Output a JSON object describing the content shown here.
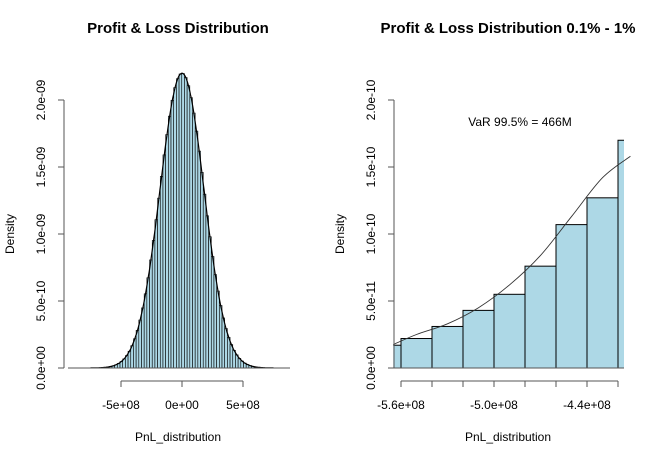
{
  "chart_data": [
    {
      "type": "bar",
      "subtype": "histogram",
      "title": "Profit & Loss Distribution",
      "xlabel": "PnL_distribution",
      "ylabel": "Density",
      "xlim": [
        -1000000000.0,
        1000000000.0
      ],
      "ylim": [
        0,
        2.2e-09
      ],
      "x_ticks": [
        -500000000.0,
        0,
        500000000.0
      ],
      "x_tick_labels": [
        "-5e+08",
        "0e+00",
        "5e+08"
      ],
      "y_ticks": [
        0,
        5e-10,
        1e-09,
        1.5e-09,
        2e-09
      ],
      "y_tick_labels": [
        "0.0e+00",
        "5.0e-10",
        "1.0e-09",
        "1.5e-09",
        "2.0e-09"
      ],
      "distribution": {
        "shape": "normal",
        "mean": 0,
        "sd": 180000000.0,
        "peak_density": 2.2e-09,
        "support": [
          -750000000.0,
          750000000.0
        ],
        "bin_width": 10000000.0
      },
      "fill_color": "#add8e6",
      "border_color": "#000000",
      "overlay_curve": "normal density",
      "grid": false
    },
    {
      "type": "bar",
      "subtype": "histogram",
      "title": "Profit & Loss Distribution 0.1% - 1%",
      "xlabel": "PnL_distribution",
      "ylabel": "Density",
      "xlim": [
        -565000000.0,
        -412000000.0
      ],
      "ylim": [
        0,
        2e-10
      ],
      "x_ticks": [
        -560000000.0,
        -540000000.0,
        -520000000.0,
        -500000000.0,
        -480000000.0,
        -460000000.0,
        -440000000.0,
        -420000000.0
      ],
      "x_tick_labels": [
        "-5.6e+08",
        "",
        "",
        "-5.0e+08",
        "",
        "",
        "-4.4e+08",
        ""
      ],
      "y_ticks": [
        0,
        5e-11,
        1e-10,
        1.5e-10,
        2e-10
      ],
      "y_tick_labels": [
        "0.0e+00",
        "5.0e-11",
        "1.0e-10",
        "1.5e-10",
        "2.0e-10"
      ],
      "bins": [
        {
          "from": -565000000.0,
          "to": -560000000.0,
          "density": 1.7e-11
        },
        {
          "from": -560000000.0,
          "to": -540000000.0,
          "density": 2.2e-11
        },
        {
          "from": -540000000.0,
          "to": -520000000.0,
          "density": 3.1e-11
        },
        {
          "from": -520000000.0,
          "to": -500000000.0,
          "density": 4.3e-11
        },
        {
          "from": -500000000.0,
          "to": -480000000.0,
          "density": 5.5e-11
        },
        {
          "from": -480000000.0,
          "to": -460000000.0,
          "density": 7.6e-11
        },
        {
          "from": -460000000.0,
          "to": -440000000.0,
          "density": 1.07e-10
        },
        {
          "from": -440000000.0,
          "to": -420000000.0,
          "density": 1.27e-10
        },
        {
          "from": -420000000.0,
          "to": -413000000.0,
          "density": 1.7e-10
        }
      ],
      "curve_points": [
        {
          "x": -565000000.0,
          "y": 1.75e-11
        },
        {
          "x": -550000000.0,
          "y": 2.5e-11
        },
        {
          "x": -530000000.0,
          "y": 3.3e-11
        },
        {
          "x": -510000000.0,
          "y": 4.5e-11
        },
        {
          "x": -490000000.0,
          "y": 6.2e-11
        },
        {
          "x": -470000000.0,
          "y": 8.4e-11
        },
        {
          "x": -450000000.0,
          "y": 1.13e-10
        },
        {
          "x": -430000000.0,
          "y": 1.42e-10
        },
        {
          "x": -412000000.0,
          "y": 1.58e-10
        }
      ],
      "annotation": "VaR 99.5% = 466M",
      "fill_color": "#add8e6",
      "border_color": "#000000",
      "grid": false
    }
  ]
}
